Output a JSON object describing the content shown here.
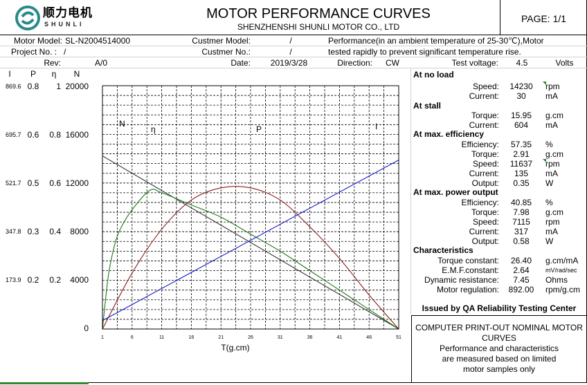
{
  "header": {
    "logo_cn": "顺力电机",
    "logo_en": "SHUNLI",
    "title": "MOTOR PERFORMANCE CURVES",
    "company": "SHENZHENSHI SHUNLI MOTOR CO., LTD",
    "page": "PAGE: 1/1"
  },
  "info": {
    "motor_model_label": "Motor Model:",
    "motor_model": "SL-N2004514000",
    "customer_model_label": "Custmer Model:",
    "customer_model": "/",
    "performance_note_1": "Performance(in an ambient temperature of 25-30℃),Motor",
    "performance_note_2": "tested rapidly to prevent significant temperature rise.",
    "project_label": "Project No. :",
    "project": "/",
    "customer_no_label": "Custmer No.:",
    "customer_no": "/",
    "rev_label": "Rev:",
    "rev": "A/0",
    "date_label": "Date:",
    "date": "2019/3/28",
    "direction_label": "Direction:",
    "direction": "CW",
    "test_voltage_label": "Test voltage:",
    "test_voltage": "4.5",
    "volts": "Volts"
  },
  "axis_headers": {
    "I": "I",
    "P": "P",
    "eta": "η",
    "N": "N"
  },
  "axis_rows": [
    {
      "I": "869.6",
      "P": "0.8",
      "eta": "1",
      "N": "20000"
    },
    {
      "I": "695.7",
      "P": "0.6",
      "eta": "0.8",
      "N": "16000"
    },
    {
      "I": "521.7",
      "P": "0.5",
      "eta": "0.6",
      "N": "12000"
    },
    {
      "I": "347.8",
      "P": "0.3",
      "eta": "0.4",
      "N": "8000"
    },
    {
      "I": "173.9",
      "P": "0.2",
      "eta": "0.2",
      "N": "4000"
    },
    {
      "I": "",
      "P": "",
      "eta": "",
      "N": "0"
    }
  ],
  "params": {
    "no_load": {
      "title": "At no load",
      "speed_label": "Speed:",
      "speed": "14230",
      "speed_unit": "rpm",
      "current_label": "Current:",
      "current": "30",
      "current_unit": "mA"
    },
    "stall": {
      "title": "At stall",
      "torque_label": "Torque:",
      "torque": "15.95",
      "torque_unit": "g.cm",
      "current_label": "Current:",
      "current": "604",
      "current_unit": "mA"
    },
    "max_eff": {
      "title": "At max. efficiency",
      "eff_label": "Efficiency:",
      "eff": "57.35",
      "eff_unit": "%",
      "torque_label": "Torque:",
      "torque": "2.91",
      "torque_unit": "g.cm",
      "speed_label": "Speed:",
      "speed": "11637",
      "speed_unit": "rpm",
      "current_label": "Current:",
      "current": "135",
      "current_unit": "mA",
      "output_label": "Output:",
      "output": "0.35",
      "output_unit": "W"
    },
    "max_power": {
      "title": "At max. power output",
      "eff_label": "Efficiency:",
      "eff": "40.85",
      "eff_unit": "%",
      "torque_label": "Torque:",
      "torque": "7.98",
      "torque_unit": "g.cm",
      "speed_label": "Speed:",
      "speed": "7115",
      "speed_unit": "rpm",
      "current_label": "Current:",
      "current": "317",
      "current_unit": "mA",
      "output_label": "Output:",
      "output": "0.58",
      "output_unit": "W"
    },
    "characteristics": {
      "title": "Characteristics",
      "tc_label": "Torque constant:",
      "tc": "26.40",
      "tc_unit": "g.cm/mA",
      "emf_label": "E.M.F.constant:",
      "emf": "2.64",
      "emf_unit": "mV/rad/sec",
      "dr_label": "Dynamic resistance:",
      "dr": "7.45",
      "dr_unit": "Ohms",
      "mr_label": "Motor regulation:",
      "mr": "892.00",
      "mr_unit": "rpm/g.cm"
    }
  },
  "issued": "Issued by QA Reliability Testing Center",
  "note": {
    "line1": "COMPUTER PRINT-OUT NOMINAL MOTOR",
    "line2": "CURVES",
    "line3": "Performance and characteristics",
    "line4": "are measured based on limited",
    "line5": "motor samples only"
  },
  "chart_data": {
    "type": "line",
    "xlabel": "T(g.cm)",
    "x_ticks": [
      "1",
      "6",
      "11",
      "16",
      "21",
      "26",
      "31",
      "36",
      "41",
      "46",
      "51"
    ],
    "xlim": [
      1,
      51
    ],
    "curve_labels": {
      "N": "N",
      "eta": "η",
      "P": "P",
      "I": "I"
    },
    "colors": {
      "N": "#333333",
      "eta": "#1a7a1a",
      "P": "#8b1a1a",
      "I": "#1a1acc"
    },
    "series": [
      {
        "name": "N",
        "x": [
          1,
          51
        ],
        "y": [
          14230,
          0
        ]
      },
      {
        "name": "η",
        "x": [
          1,
          2,
          3,
          4,
          6,
          9,
          11,
          16,
          21,
          26,
          31,
          36,
          41,
          46,
          51
        ],
        "y": [
          0,
          0.22,
          0.34,
          0.41,
          0.49,
          0.57,
          0.56,
          0.51,
          0.46,
          0.39,
          0.32,
          0.24,
          0.16,
          0.08,
          0
        ]
      },
      {
        "name": "P",
        "x": [
          1,
          6,
          11,
          16,
          21,
          26,
          31,
          36,
          41,
          46,
          51
        ],
        "y": [
          0,
          0.23,
          0.41,
          0.53,
          0.58,
          0.58,
          0.53,
          0.42,
          0.29,
          0.14,
          0
        ]
      },
      {
        "name": "I",
        "x": [
          1,
          51
        ],
        "y": [
          30,
          604
        ]
      }
    ]
  }
}
